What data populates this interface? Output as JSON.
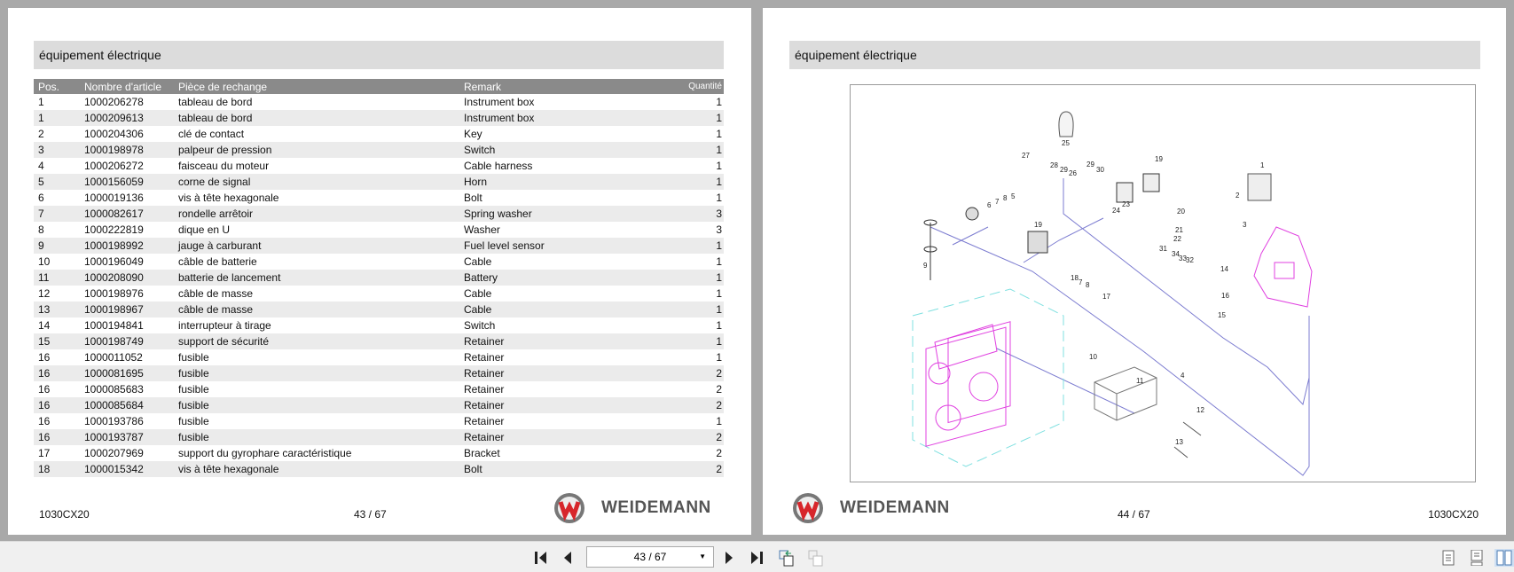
{
  "left_page": {
    "section_title": "équipement électrique",
    "columns": [
      "Pos.",
      "Nombre d'article",
      "Pièce de rechange",
      "Remark",
      "Quantité"
    ],
    "rows": [
      [
        "1",
        "1000206278",
        "tableau de bord",
        "Instrument box",
        "1"
      ],
      [
        "1",
        "1000209613",
        "tableau de bord",
        "Instrument box",
        "1"
      ],
      [
        "2",
        "1000204306",
        "clé de contact",
        "Key",
        "1"
      ],
      [
        "3",
        "1000198978",
        "palpeur de pression",
        "Switch",
        "1"
      ],
      [
        "4",
        "1000206272",
        "faisceau du moteur",
        "Cable harness",
        "1"
      ],
      [
        "5",
        "1000156059",
        "corne de signal",
        "Horn",
        "1"
      ],
      [
        "6",
        "1000019136",
        "vis à tête hexagonale",
        "Bolt",
        "1"
      ],
      [
        "7",
        "1000082617",
        "rondelle arrêtoir",
        "Spring washer",
        "3"
      ],
      [
        "8",
        "1000222819",
        "dique en U",
        "Washer",
        "3"
      ],
      [
        "9",
        "1000198992",
        "jauge à carburant",
        "Fuel level sensor",
        "1"
      ],
      [
        "10",
        "1000196049",
        "câble de batterie",
        "Cable",
        "1"
      ],
      [
        "11",
        "1000208090",
        "batterie de lancement",
        "Battery",
        "1"
      ],
      [
        "12",
        "1000198976",
        "câble de masse",
        "Cable",
        "1"
      ],
      [
        "13",
        "1000198967",
        "câble de masse",
        "Cable",
        "1"
      ],
      [
        "14",
        "1000194841",
        "interrupteur à tirage",
        "Switch",
        "1"
      ],
      [
        "15",
        "1000198749",
        "support de sécurité",
        "Retainer",
        "1"
      ],
      [
        "16",
        "1000011052",
        "fusible",
        "Retainer",
        "1"
      ],
      [
        "16",
        "1000081695",
        "fusible",
        "Retainer",
        "2"
      ],
      [
        "16",
        "1000085683",
        "fusible",
        "Retainer",
        "2"
      ],
      [
        "16",
        "1000085684",
        "fusible",
        "Retainer",
        "2"
      ],
      [
        "16",
        "1000193786",
        "fusible",
        "Retainer",
        "1"
      ],
      [
        "16",
        "1000193787",
        "fusible",
        "Retainer",
        "2"
      ],
      [
        "17",
        "1000207969",
        "support du gyrophare caractéristique",
        "Bracket",
        "2"
      ],
      [
        "18",
        "1000015342",
        "vis à tête hexagonale",
        "Bolt",
        "2"
      ]
    ],
    "model": "1030CX20",
    "page_num": "43 / 67",
    "brand": "WEIDEMANN"
  },
  "right_page": {
    "section_title": "équipement électrique",
    "model": "1030CX20",
    "page_num": "44 / 67",
    "brand": "WEIDEMANN",
    "callouts": [
      "25",
      "27",
      "28",
      "29",
      "26",
      "29",
      "30",
      "19",
      "1",
      "2",
      "20",
      "24",
      "23",
      "21",
      "22",
      "6",
      "7",
      "8",
      "5",
      "19",
      "3",
      "31",
      "34",
      "33",
      "32",
      "14",
      "9",
      "18",
      "7",
      "8",
      "17",
      "16",
      "15",
      "10",
      "11",
      "4",
      "12",
      "13"
    ]
  },
  "toolbar": {
    "page_field": "43 / 67"
  },
  "colors": {
    "brand_red": "#d7262b",
    "wire": "#7b7bd0",
    "engine": "#e040e0"
  }
}
